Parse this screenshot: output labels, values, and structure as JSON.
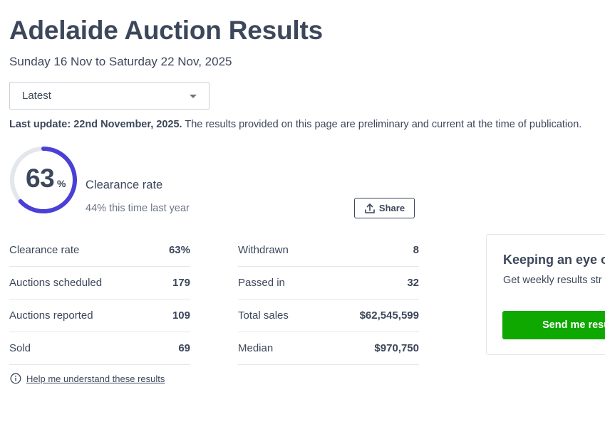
{
  "header": {
    "title": "Adelaide Auction Results",
    "date_range": "Sunday 16 Nov to Saturday 22 Nov, 2025"
  },
  "period_select": {
    "value": "Latest"
  },
  "last_update": {
    "label": "Last update: 22nd November, 2025.",
    "note": "The results provided on this page are preliminary and current at the time of publication."
  },
  "clearance": {
    "value": 63,
    "value_text": "63",
    "percent_sign": "%",
    "label": "Clearance rate",
    "last_year": "44% this time last year",
    "gauge_color": "#4a3fd6",
    "track_color": "#e3e6ea"
  },
  "share_button": {
    "label": "Share",
    "icon": "upload-icon"
  },
  "stats_left": [
    {
      "label": "Clearance rate",
      "value": "63%"
    },
    {
      "label": "Auctions scheduled",
      "value": "179"
    },
    {
      "label": "Auctions reported",
      "value": "109"
    },
    {
      "label": "Sold",
      "value": "69"
    }
  ],
  "stats_right": [
    {
      "label": "Withdrawn",
      "value": "8"
    },
    {
      "label": "Passed in",
      "value": "32"
    },
    {
      "label": "Total sales",
      "value": "$62,545,599"
    },
    {
      "label": "Median",
      "value": "$970,750"
    }
  ],
  "help": {
    "icon": "info-icon",
    "label": "Help me understand these results"
  },
  "promo": {
    "title": "Keeping an eye o",
    "text": "Get weekly results str your mailbox.",
    "button_label": "Send me resu",
    "button_color": "#0ea800"
  }
}
